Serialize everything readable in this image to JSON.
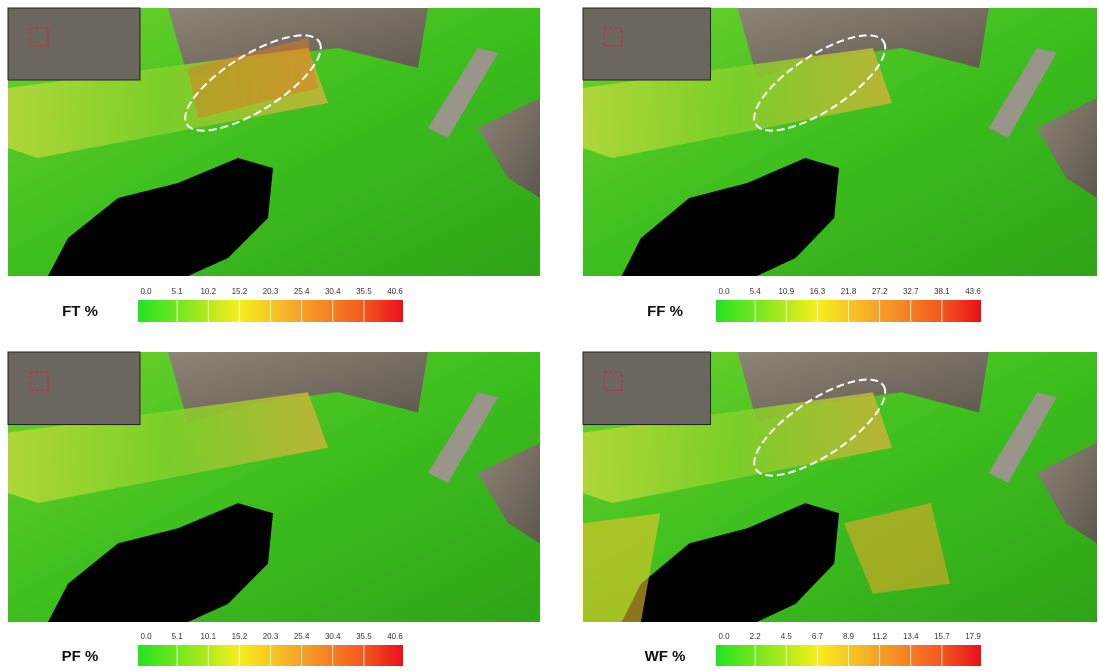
{
  "panels": [
    {
      "label": "FT %",
      "ticks": [
        "0.0",
        "5.1",
        "10.2",
        "15.2",
        "20.3",
        "25.4",
        "30.4",
        "35.5",
        "40.6"
      ]
    },
    {
      "label": "FF %",
      "ticks": [
        "0.0",
        "5.4",
        "10.9",
        "16.3",
        "21.8",
        "27.2",
        "32.7",
        "38.1",
        "43.6"
      ]
    },
    {
      "label": "PF %",
      "ticks": [
        "0.0",
        "5.1",
        "10.1",
        "15.2",
        "20.3",
        "25.4",
        "30.4",
        "35.5",
        "40.6"
      ]
    },
    {
      "label": "WF %",
      "ticks": [
        "0.0",
        "2.2",
        "4.5",
        "6.7",
        "8.9",
        "11.2",
        "13.4",
        "15.7",
        "17.9"
      ]
    }
  ]
}
